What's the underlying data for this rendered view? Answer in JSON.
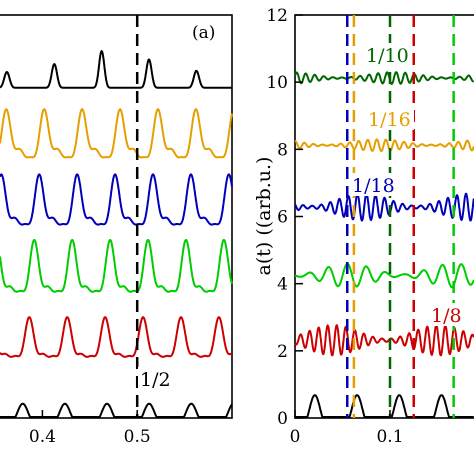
{
  "chart_data": [
    {
      "type": "line",
      "panel_label": "(a)",
      "xlim": [
        0.35,
        0.6
      ],
      "xticks": [
        "0.4",
        "0.5"
      ],
      "xtick_values": [
        0.4,
        0.5
      ],
      "ylim": [
        0,
        12
      ],
      "series": [
        {
          "color": "#000000",
          "offset": 10.0,
          "amp": 1.1,
          "kind": "sharp-peaks",
          "freq": 160
        },
        {
          "color": "#e69f00",
          "offset": 8.0,
          "amp": 1.6,
          "kind": "modulated",
          "freq": 150
        },
        {
          "color": "#0000bb",
          "offset": 6.0,
          "amp": 1.6,
          "kind": "modulated",
          "freq": 150
        },
        {
          "color": "#00cc00",
          "offset": 4.0,
          "amp": 1.6,
          "kind": "modulated",
          "freq": 150
        },
        {
          "color": "#cc0000",
          "offset": 2.0,
          "amp": 1.2,
          "kind": "modulated",
          "freq": 150
        },
        {
          "color": "#000000",
          "offset": 0.0,
          "amp": 0.5,
          "kind": "bumps",
          "freq": 90
        }
      ],
      "markers": [
        {
          "x": 0.5,
          "color": "#000000",
          "label": "1/2"
        }
      ]
    },
    {
      "type": "line",
      "xlim": [
        0,
        0.2
      ],
      "xticks": [
        "0",
        "0.1"
      ],
      "xtick_values": [
        0,
        0.1
      ],
      "ylim": [
        0,
        12
      ],
      "yticks": [
        "0",
        "2",
        "4",
        "6",
        "8",
        "10",
        "12"
      ],
      "ytick_values": [
        0,
        2,
        4,
        6,
        8,
        10,
        12
      ],
      "ylabel": "a(t) ((arb.u.)",
      "series": [
        {
          "color": "#006600",
          "offset": 10.0,
          "amp": 0.35,
          "kind": "beat",
          "freq": 420
        },
        {
          "color": "#e69f00",
          "offset": 8.0,
          "amp": 0.35,
          "kind": "beat",
          "freq": 420
        },
        {
          "color": "#0000bb",
          "offset": 6.0,
          "amp": 0.8,
          "kind": "beat",
          "freq": 420
        },
        {
          "color": "#00cc00",
          "offset": 4.0,
          "amp": 0.7,
          "kind": "beat",
          "freq": 200
        },
        {
          "color": "#cc0000",
          "offset": 2.0,
          "amp": 0.9,
          "kind": "beat",
          "freq": 420
        },
        {
          "color": "#000000",
          "offset": 0.0,
          "amp": 0.8,
          "kind": "bumps",
          "freq": 90
        }
      ],
      "markers": [
        {
          "x": 0.055,
          "color": "#0000bb",
          "label": "1/18"
        },
        {
          "x": 0.062,
          "color": "#e69f00",
          "label": "1/16"
        },
        {
          "x": 0.1,
          "color": "#006600",
          "label": "1/10"
        },
        {
          "x": 0.125,
          "color": "#cc0000",
          "label": "1/8"
        },
        {
          "x": 0.167,
          "color": "#00cc00",
          "label": ""
        }
      ]
    }
  ]
}
